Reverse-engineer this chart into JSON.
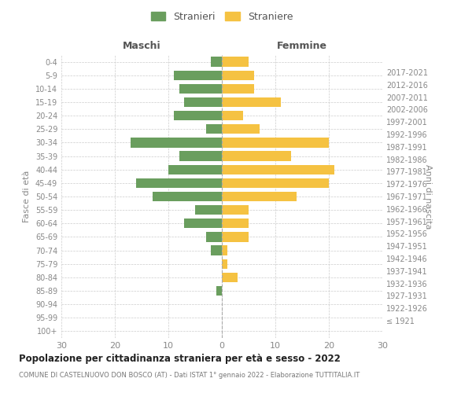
{
  "age_groups": [
    "0-4",
    "5-9",
    "10-14",
    "15-19",
    "20-24",
    "25-29",
    "30-34",
    "35-39",
    "40-44",
    "45-49",
    "50-54",
    "55-59",
    "60-64",
    "65-69",
    "70-74",
    "75-79",
    "80-84",
    "85-89",
    "90-94",
    "95-99",
    "100+"
  ],
  "birth_years": [
    "2017-2021",
    "2012-2016",
    "2007-2011",
    "2002-2006",
    "1997-2001",
    "1992-1996",
    "1987-1991",
    "1982-1986",
    "1977-1981",
    "1972-1976",
    "1967-1971",
    "1962-1966",
    "1957-1961",
    "1952-1956",
    "1947-1951",
    "1942-1946",
    "1937-1941",
    "1932-1936",
    "1927-1931",
    "1922-1926",
    "≤ 1921"
  ],
  "maschi": [
    2,
    9,
    8,
    7,
    9,
    3,
    17,
    8,
    10,
    16,
    13,
    5,
    7,
    3,
    2,
    0,
    0,
    1,
    0,
    0,
    0
  ],
  "femmine": [
    5,
    6,
    6,
    11,
    4,
    7,
    20,
    13,
    21,
    20,
    14,
    5,
    5,
    5,
    1,
    1,
    3,
    0,
    0,
    0,
    0
  ],
  "color_maschi": "#6a9e5e",
  "color_femmine": "#f5c242",
  "title": "Popolazione per cittadinanza straniera per età e sesso - 2022",
  "subtitle": "COMUNE DI CASTELNUOVO DON BOSCO (AT) - Dati ISTAT 1° gennaio 2022 - Elaborazione TUTTITALIA.IT",
  "xlabel_left": "Maschi",
  "xlabel_right": "Femmine",
  "ylabel_left": "Fasce di età",
  "ylabel_right": "Anni di nascita",
  "legend_maschi": "Stranieri",
  "legend_femmine": "Straniere",
  "xlim": 30,
  "bg_color": "#ffffff",
  "grid_color": "#cccccc"
}
